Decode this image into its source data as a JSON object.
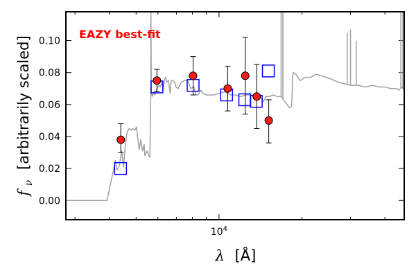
{
  "chart_data": {
    "type": "scatter",
    "annotation": {
      "text": "EAZY best-fit",
      "color": "#ff0000"
    },
    "xlabel": {
      "symbol": "λ",
      "unit": "[Å]"
    },
    "ylabel": {
      "symbol": "f",
      "subscript": "ν",
      "text": "[arbitrarily scaled]"
    },
    "x_scale": "log",
    "xlim": [
      2780,
      47000
    ],
    "ylim": [
      -0.012,
      0.118
    ],
    "x_ticks": [
      {
        "value": 10000,
        "base": "10",
        "exp": "4"
      }
    ],
    "x_minor_ticks": [
      3000,
      4000,
      5000,
      6000,
      7000,
      8000,
      9000,
      20000,
      30000,
      40000
    ],
    "y_ticks": [
      {
        "value": 0.0,
        "label": "0.00"
      },
      {
        "value": 0.02,
        "label": "0.02"
      },
      {
        "value": 0.04,
        "label": "0.04"
      },
      {
        "value": 0.06,
        "label": "0.06"
      },
      {
        "value": 0.08,
        "label": "0.08"
      },
      {
        "value": 0.1,
        "label": "0.10"
      }
    ],
    "grid": false,
    "series": [
      {
        "kind": "template",
        "color": "#a0a0a0",
        "points": [
          [
            2780,
            0.0
          ],
          [
            3920,
            0.0
          ],
          [
            4150,
            0.02
          ],
          [
            4200,
            0.025
          ],
          [
            4260,
            0.019
          ],
          [
            4350,
            0.022
          ],
          [
            4430,
            0.031
          ],
          [
            4500,
            0.021
          ],
          [
            4560,
            0.033
          ],
          [
            4640,
            0.043
          ],
          [
            4720,
            0.045
          ],
          [
            4800,
            0.044
          ],
          [
            4870,
            0.045
          ],
          [
            4950,
            0.044
          ],
          [
            5020,
            0.046
          ],
          [
            5060,
            0.04
          ],
          [
            5130,
            0.032
          ],
          [
            5200,
            0.038
          ],
          [
            5280,
            0.031
          ],
          [
            5350,
            0.035
          ],
          [
            5380,
            0.028
          ],
          [
            5480,
            0.031
          ],
          [
            5560,
            0.028
          ],
          [
            5610,
            0.027
          ],
          [
            5660,
            0.073
          ],
          [
            5660,
            0.12
          ],
          [
            5680,
            0.068
          ],
          [
            5720,
            0.065
          ],
          [
            5800,
            0.068
          ],
          [
            5850,
            0.066
          ],
          [
            5950,
            0.07
          ],
          [
            6050,
            0.072
          ],
          [
            6120,
            0.071
          ],
          [
            6210,
            0.074
          ],
          [
            6260,
            0.069
          ],
          [
            6350,
            0.076
          ],
          [
            6400,
            0.077
          ],
          [
            6450,
            0.074
          ],
          [
            6550,
            0.075
          ],
          [
            6650,
            0.067
          ],
          [
            6700,
            0.075
          ],
          [
            6800,
            0.075
          ],
          [
            6900,
            0.074
          ],
          [
            6980,
            0.071
          ],
          [
            7100,
            0.07
          ],
          [
            7300,
            0.074
          ],
          [
            7500,
            0.075
          ],
          [
            7700,
            0.075
          ],
          [
            7900,
            0.07
          ],
          [
            8100,
            0.071
          ],
          [
            8250,
            0.066
          ],
          [
            8400,
            0.066
          ],
          [
            8600,
            0.069
          ],
          [
            8750,
            0.067
          ],
          [
            9000,
            0.066
          ],
          [
            9300,
            0.066
          ],
          [
            9600,
            0.066
          ],
          [
            10000,
            0.067
          ],
          [
            10500,
            0.068
          ],
          [
            11000,
            0.066
          ],
          [
            11500,
            0.066
          ],
          [
            12000,
            0.065
          ],
          [
            12500,
            0.066
          ],
          [
            13000,
            0.066
          ],
          [
            13500,
            0.065
          ],
          [
            14000,
            0.065
          ],
          [
            14200,
            0.064
          ],
          [
            14500,
            0.062
          ],
          [
            14800,
            0.065
          ],
          [
            15200,
            0.065
          ],
          [
            15700,
            0.066
          ],
          [
            16300,
            0.065
          ],
          [
            16800,
            0.065
          ],
          [
            17500,
            0.061
          ],
          [
            18000,
            0.058
          ],
          [
            18350,
            0.059
          ],
          [
            18450,
            0.071
          ],
          [
            18500,
            0.078
          ],
          [
            18600,
            0.08
          ],
          [
            19000,
            0.079
          ],
          [
            19700,
            0.075
          ],
          [
            20500,
            0.077
          ],
          [
            21500,
            0.077
          ],
          [
            22500,
            0.079
          ],
          [
            23500,
            0.078
          ],
          [
            24500,
            0.077
          ],
          [
            25500,
            0.076
          ],
          [
            27000,
            0.074
          ],
          [
            28500,
            0.073
          ],
          [
            30000,
            0.072
          ],
          [
            32000,
            0.072
          ],
          [
            34000,
            0.071
          ],
          [
            36000,
            0.072
          ],
          [
            38000,
            0.071
          ],
          [
            40000,
            0.071
          ],
          [
            42000,
            0.07
          ],
          [
            44000,
            0.07
          ],
          [
            45000,
            0.069
          ],
          [
            46000,
            0.071
          ],
          [
            47000,
            0.069
          ]
        ],
        "emission_lines": [
          {
            "x": 5660,
            "top": 0.12
          },
          {
            "x": 16800,
            "top": 0.12
          },
          {
            "x": 17050,
            "top": 0.118
          },
          {
            "x": 29200,
            "top": 0.105
          },
          {
            "x": 30000,
            "top": 0.107
          },
          {
            "x": 31500,
            "top": 0.1
          },
          {
            "x": 45700,
            "top": 0.12
          },
          {
            "x": 46500,
            "top": 0.12
          }
        ]
      },
      {
        "kind": "model_photometry",
        "marker": "open-square",
        "color": "#0000ff",
        "x": [
          4390,
          5950,
          8050,
          10650,
          12400,
          13650,
          15100
        ],
        "y": [
          0.02,
          0.071,
          0.072,
          0.066,
          0.063,
          0.062,
          0.081
        ]
      },
      {
        "kind": "observed_photometry",
        "marker": "filled-circle",
        "color": "#ff1a1a",
        "x": [
          4400,
          5950,
          8050,
          10750,
          12450,
          13700,
          15150
        ],
        "y": [
          0.038,
          0.075,
          0.078,
          0.07,
          0.078,
          0.065,
          0.05
        ],
        "yerr_low": [
          0.008,
          0.007,
          0.012,
          0.014,
          0.024,
          0.02,
          0.014
        ],
        "yerr_high": [
          0.01,
          0.007,
          0.012,
          0.014,
          0.024,
          0.02,
          0.013
        ]
      }
    ]
  }
}
